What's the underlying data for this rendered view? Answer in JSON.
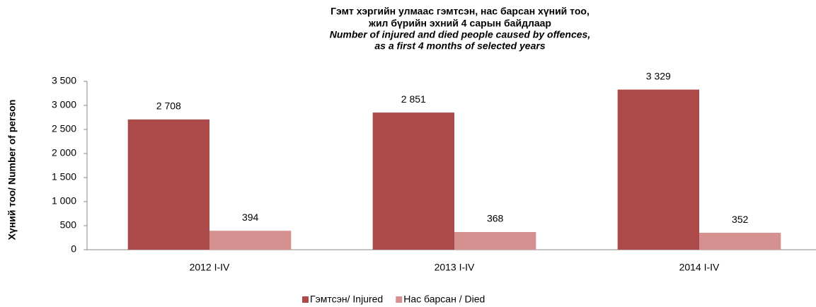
{
  "chart_data": {
    "type": "bar",
    "title": [
      "Гэмт хэргийн улмаас гэмтсэн, нас барсан хүний тоо,",
      "жил  бүрийн эхний 4 сарын байдлаар",
      "Number of injured and died people caused by offences,",
      "as a first 4 months of selected years"
    ],
    "y_label": "Хүний тоо/ Number of person",
    "categories": [
      "2012 I-IV",
      "2013 I-IV",
      "2014 I-IV"
    ],
    "series": [
      {
        "name": "Гэмтсэн/ Injured",
        "color": "#ab4a48",
        "values": [
          2708,
          2851,
          3329
        ],
        "value_labels": [
          "2 708",
          "2 851",
          "3 329"
        ]
      },
      {
        "name": "Нас барсан / Died",
        "color": "#d4918f",
        "values": [
          394,
          368,
          352
        ]
      }
    ],
    "ylim": [
      0,
      3500
    ],
    "yticks": [
      0,
      500,
      {
        "value": 1000,
        "label": "1 000"
      },
      {
        "value": 1500,
        "label": "1 500"
      },
      {
        "value": 2000,
        "label": "2 000"
      },
      {
        "value": 2500,
        "label": "2 500"
      },
      {
        "value": 3000,
        "label": "3 000"
      },
      {
        "value": 3500,
        "label": "3 500"
      }
    ],
    "legend": "bottom"
  }
}
